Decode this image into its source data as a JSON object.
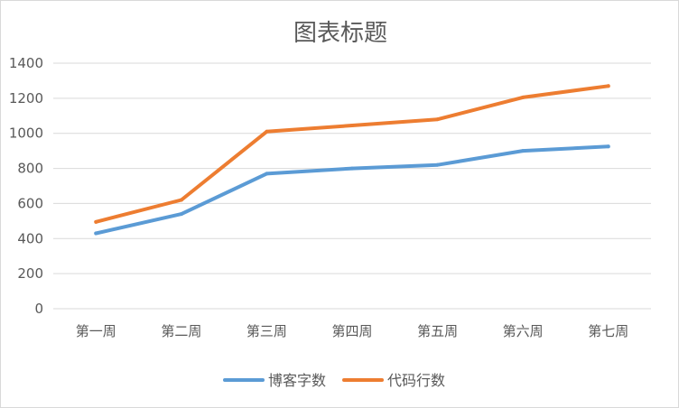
{
  "chart_data": {
    "type": "line",
    "title": "图表标题",
    "xlabel": "",
    "ylabel": "",
    "categories": [
      "第一周",
      "第二周",
      "第三周",
      "第四周",
      "第五周",
      "第六周",
      "第七周"
    ],
    "ylim": [
      0,
      1400
    ],
    "yticks": [
      0,
      200,
      400,
      600,
      800,
      1000,
      1200,
      1400
    ],
    "grid": true,
    "legend_position": "bottom",
    "series": [
      {
        "name": "博客字数",
        "color": "#5b9bd5",
        "values": [
          430,
          540,
          770,
          800,
          820,
          900,
          925
        ]
      },
      {
        "name": "代码行数",
        "color": "#ed7d31",
        "values": [
          495,
          620,
          1010,
          1045,
          1080,
          1205,
          1270
        ]
      }
    ]
  }
}
